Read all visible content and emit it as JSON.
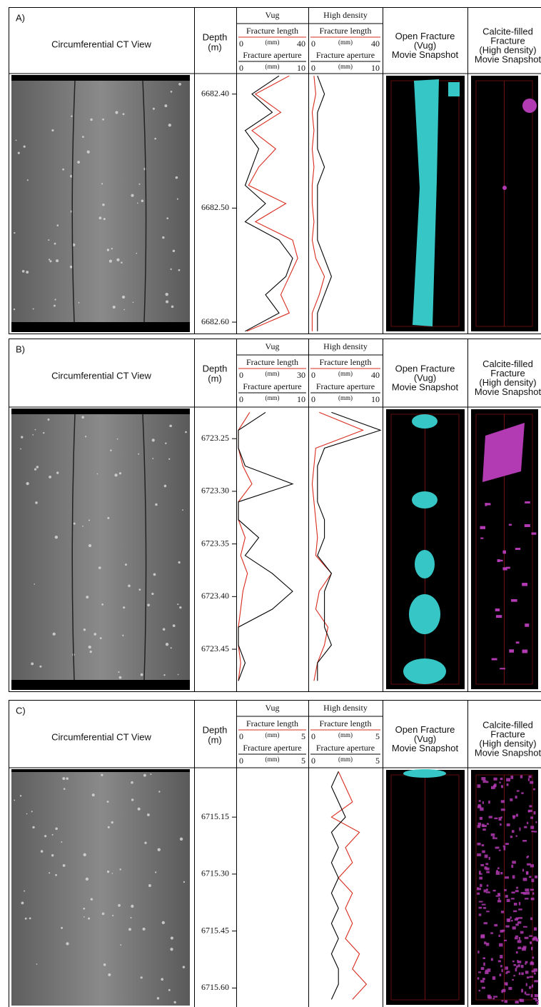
{
  "chart_data": [
    {
      "type": "well-log",
      "label": "A)",
      "title": "Circumferential CT View",
      "depth_title": [
        "Depth",
        "(m)"
      ],
      "ylim": [
        6682.382,
        6682.61
      ],
      "yticks": [
        {
          "value": 6682.4,
          "label": "6682.40"
        },
        {
          "value": 6682.5,
          "label": "6682.50"
        },
        {
          "value": 6682.6,
          "label": "6682.60"
        }
      ],
      "depth": [
        6682.384,
        6682.4,
        6682.416,
        6682.432,
        6682.448,
        6682.464,
        6682.48,
        6682.496,
        6682.512,
        6682.528,
        6682.544,
        6682.56,
        6682.576,
        6682.592,
        6682.608
      ],
      "tracks": [
        {
          "title": "Vug",
          "series": [
            {
              "name": "Fracture length",
              "unit": "(mm)",
              "color": "#d92b1e",
              "xlim": [
                0,
                40
              ],
              "values": [
                30,
                10,
                25,
                8,
                22,
                12,
                6,
                28,
                10,
                32,
                35,
                30,
                25,
                30,
                5
              ]
            },
            {
              "name": "Fracture aperture",
              "unit": "(mm)",
              "color": "#000000",
              "xlim": [
                0,
                10
              ],
              "values": [
                6,
                2,
                5,
                1,
                3,
                2,
                1,
                4,
                1,
                6,
                8,
                7,
                4,
                6,
                1
              ]
            }
          ]
        },
        {
          "title": "High density",
          "series": [
            {
              "name": "Fracture length",
              "unit": "(mm)",
              "color": "#d92b1e",
              "xlim": [
                0,
                40
              ],
              "values": [
                2,
                3,
                1,
                2,
                1,
                2,
                1,
                1,
                2,
                1,
                3,
                8,
                5,
                1,
                1
              ]
            },
            {
              "name": "Fracture aperture",
              "unit": "(mm)",
              "color": "#000000",
              "xlim": [
                0,
                10
              ],
              "values": [
                1,
                2,
                1,
                1,
                1,
                2,
                1,
                1,
                1,
                1,
                2,
                3,
                2,
                1,
                1
              ]
            }
          ]
        }
      ],
      "snapshots": [
        [
          "Open Fracture",
          "(Vug)",
          "Movie Snapshot"
        ],
        [
          "Calcite-filled",
          "Fracture",
          "(High density)",
          "Movie Snapshot"
        ]
      ]
    },
    {
      "type": "well-log",
      "label": "B)",
      "title": "Circumferential CT View",
      "depth_title": [
        "Depth",
        "(m)"
      ],
      "ylim": [
        6723.22,
        6723.49
      ],
      "yticks": [
        {
          "value": 6723.25,
          "label": "6723.25"
        },
        {
          "value": 6723.3,
          "label": "6723.30"
        },
        {
          "value": 6723.35,
          "label": "6723.35"
        },
        {
          "value": 6723.4,
          "label": "6723.40"
        },
        {
          "value": 6723.45,
          "label": "6723.45"
        }
      ],
      "depth": [
        6723.225,
        6723.242,
        6723.259,
        6723.276,
        6723.293,
        6723.31,
        6723.327,
        6723.344,
        6723.361,
        6723.378,
        6723.395,
        6723.412,
        6723.429,
        6723.446,
        6723.463,
        6723.48
      ],
      "tracks": [
        {
          "title": "Vug",
          "series": [
            {
              "name": "Fracture length",
              "unit": "(mm)",
              "color": "#d92b1e",
              "xlim": [
                0,
                30
              ],
              "values": [
                5,
                0,
                0,
                2,
                6,
                0,
                0,
                3,
                1,
                4,
                2,
                1,
                0,
                0,
                1,
                0
              ]
            },
            {
              "name": "Fracture aperture",
              "unit": "(mm)",
              "color": "#000000",
              "xlim": [
                0,
                10
              ],
              "values": [
                4,
                0,
                0,
                1,
                8,
                0,
                0,
                3,
                1,
                5,
                8,
                5,
                0,
                0,
                1,
                0
              ]
            }
          ]
        },
        {
          "title": "High density",
          "series": [
            {
              "name": "Fracture length",
              "unit": "(mm)",
              "color": "#d92b1e",
              "xlim": [
                0,
                40
              ],
              "values": [
                5,
                30,
                3,
                2,
                1,
                2,
                3,
                4,
                3,
                12,
                5,
                3,
                10,
                8,
                4,
                2
              ]
            },
            {
              "name": "Fracture aperture",
              "unit": "(mm)",
              "color": "#000000",
              "xlim": [
                0,
                10
              ],
              "values": [
                3,
                10,
                2,
                1,
                1,
                1,
                2,
                2,
                1,
                3,
                2,
                2,
                2,
                3,
                1,
                1
              ]
            }
          ]
        }
      ],
      "snapshots": [
        [
          "Open Fracture",
          "(Vug)",
          "Movie Snapshot"
        ],
        [
          "Calcite-filled",
          "Fracture",
          "(High density)",
          "Movie Snapshot"
        ]
      ]
    },
    {
      "type": "well-log",
      "label": "C)",
      "title": "Circumferential CT View",
      "depth_title": [
        "Depth",
        "(m)"
      ],
      "ylim": [
        6715.02,
        6715.65
      ],
      "yticks": [
        {
          "value": 6715.15,
          "label": "6715.15"
        },
        {
          "value": 6715.3,
          "label": "6715.30"
        },
        {
          "value": 6715.45,
          "label": "6715.45"
        },
        {
          "value": 6715.6,
          "label": "6715.60"
        }
      ],
      "depth": [
        6715.03,
        6715.07,
        6715.11,
        6715.15,
        6715.19,
        6715.23,
        6715.27,
        6715.31,
        6715.35,
        6715.39,
        6715.43,
        6715.47,
        6715.51,
        6715.55,
        6715.59,
        6715.63
      ],
      "tracks": [
        {
          "title": "Vug",
          "series": [
            {
              "name": "Fracture length",
              "unit": "(mm)",
              "color": "#d92b1e",
              "xlim": [
                0,
                5
              ]
            },
            {
              "name": "Fracture aperture",
              "unit": "(mm)",
              "color": "#000000",
              "xlim": [
                0,
                5
              ]
            }
          ]
        },
        {
          "title": "High density",
          "series": [
            {
              "name": "Fracture length",
              "unit": "(mm)",
              "color": "#d92b1e",
              "xlim": [
                0,
                5
              ],
              "values": [
                2,
                2.5,
                3,
                1.5,
                3.5,
                2.5,
                3,
                2,
                3,
                2.5,
                3,
                2.5,
                3.5,
                3,
                4,
                3
              ]
            },
            {
              "name": "Fracture aperture",
              "unit": "(mm)",
              "color": "#000000",
              "xlim": [
                0,
                5
              ],
              "values": [
                2,
                1.5,
                2,
                2.5,
                1.5,
                2,
                1.5,
                2,
                1.5,
                2,
                1.5,
                2,
                1.5,
                2,
                2,
                1.5
              ]
            }
          ]
        }
      ],
      "snapshots": [
        [
          "Open Fracture",
          "(Vug)",
          "Movie Snapshot"
        ],
        [
          "Calcite-filled",
          "Fracture",
          "(High density)",
          "Movie Snapshot"
        ]
      ]
    }
  ]
}
